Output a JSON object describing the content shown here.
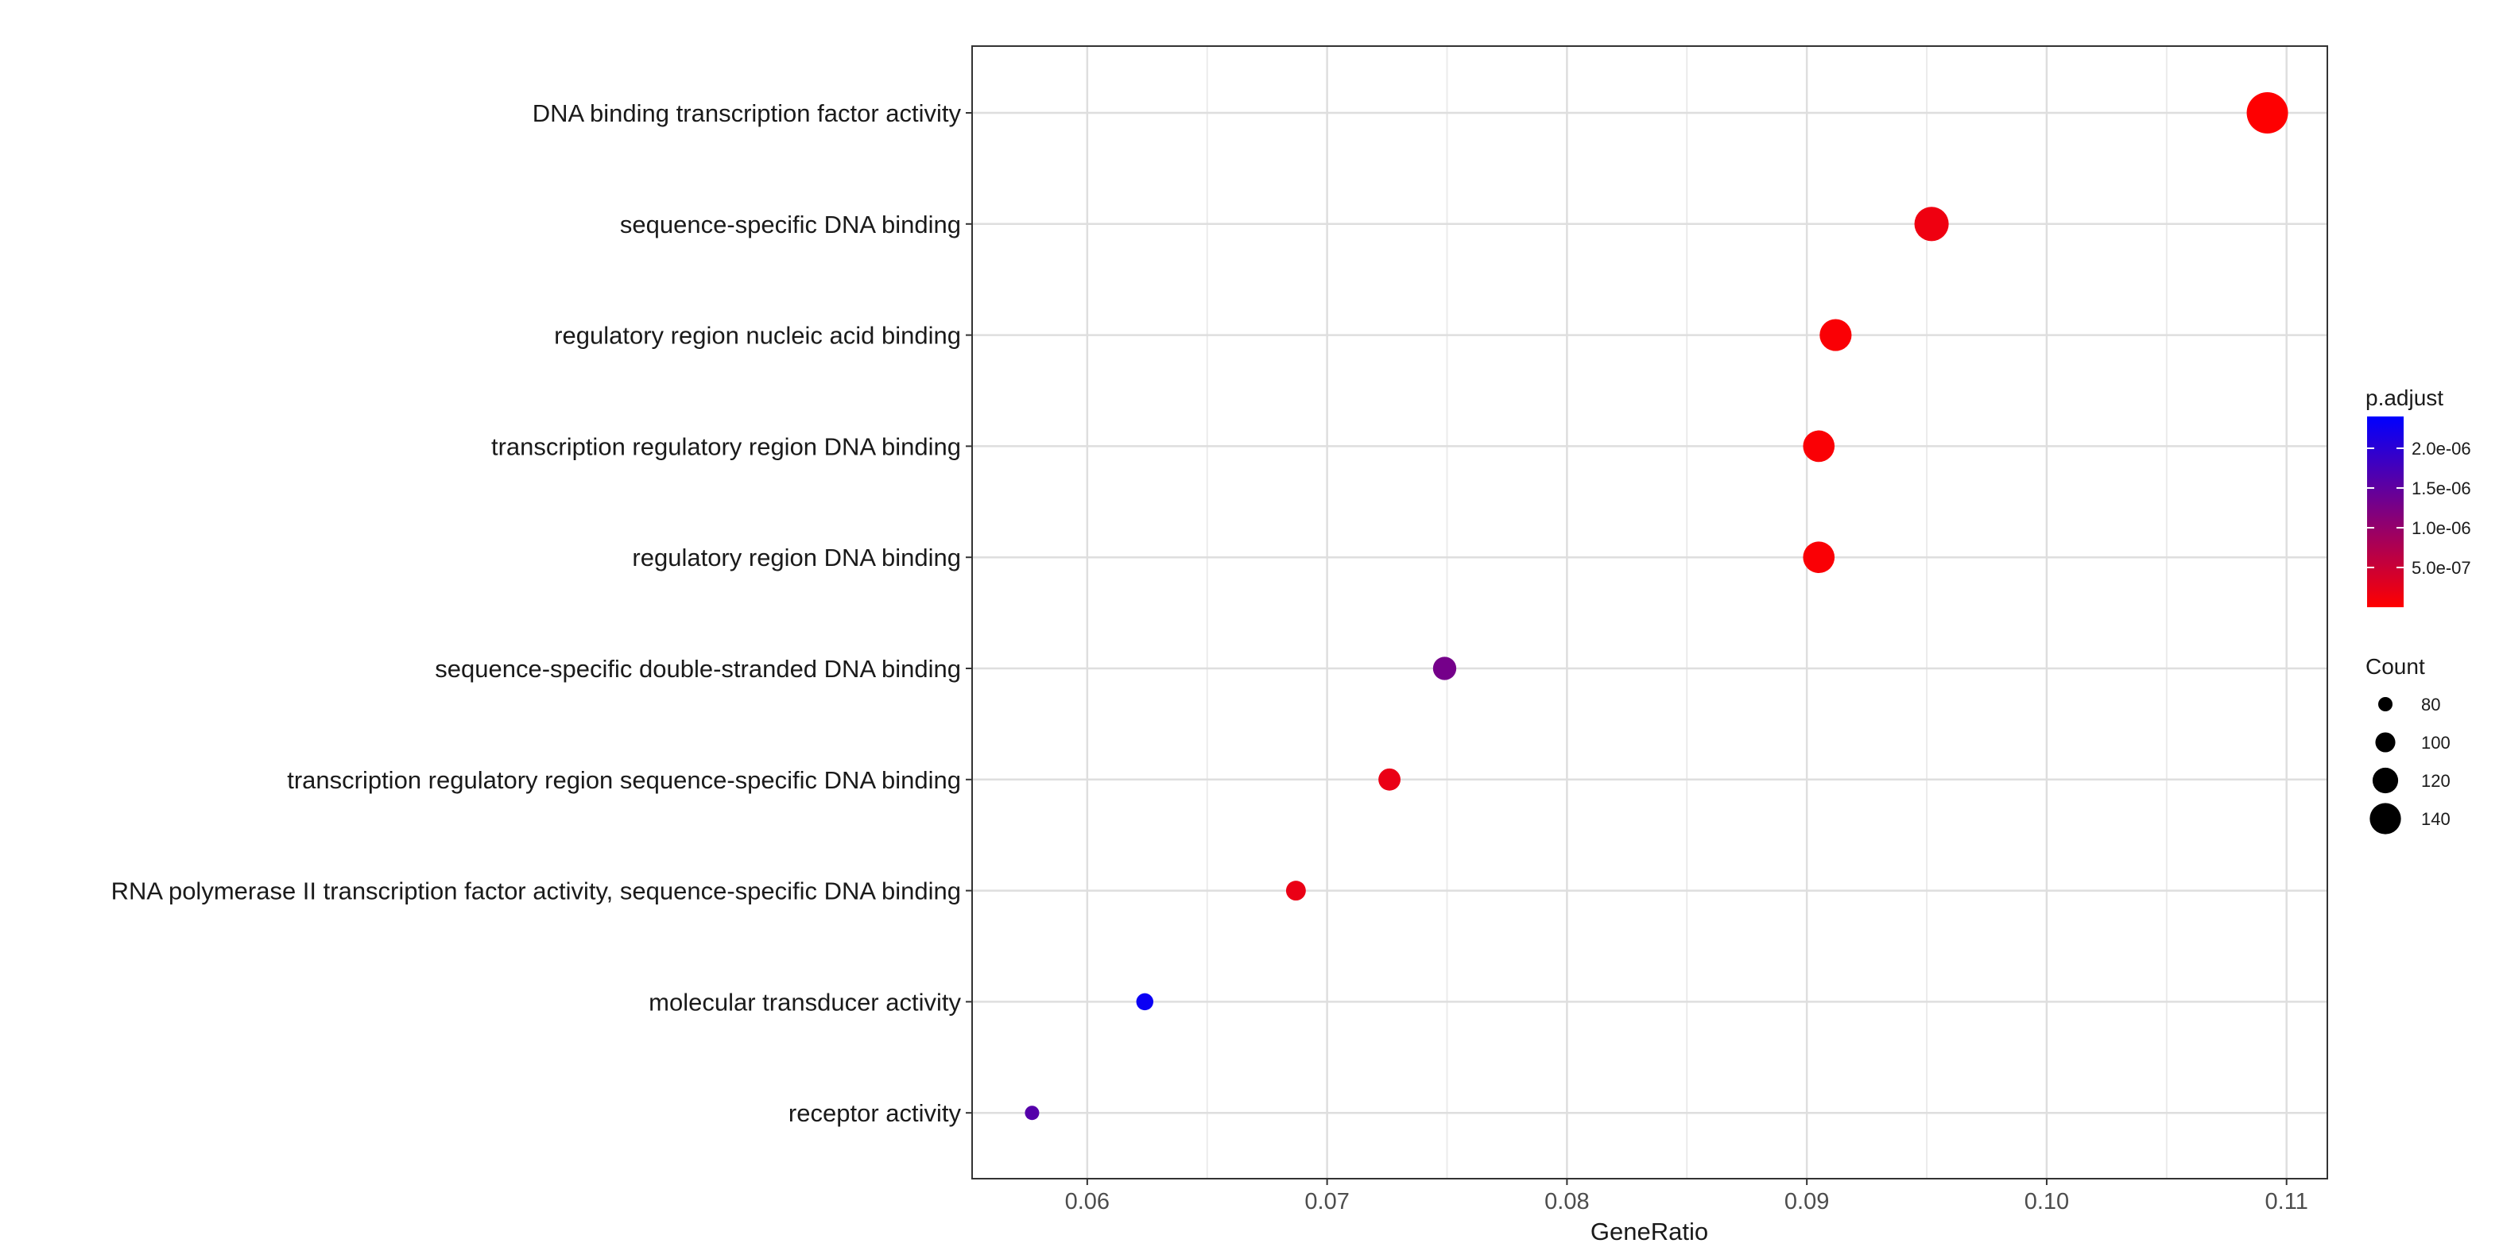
{
  "chart_data": {
    "type": "scatter",
    "title": "",
    "xlabel": "GeneRatio",
    "ylabel": "",
    "xlim": [
      0.0552,
      0.1117
    ],
    "x_ticks": [
      0.06,
      0.07,
      0.08,
      0.09,
      0.1,
      0.11
    ],
    "x_tick_labels": [
      "0.06",
      "0.07",
      "0.08",
      "0.09",
      "0.10",
      "0.11"
    ],
    "categories": [
      "DNA binding transcription factor activity",
      "sequence-specific DNA binding",
      "regulatory region nucleic acid binding",
      "transcription regulatory region DNA binding",
      "regulatory region DNA binding",
      "sequence-specific double-stranded DNA binding",
      "transcription regulatory region sequence-specific DNA binding",
      "RNA polymerase II transcription factor activity, sequence-specific DNA binding",
      "molecular transducer activity",
      "receptor activity"
    ],
    "gene_ratio": [
      0.1092,
      0.0952,
      0.0912,
      0.0905,
      0.0905,
      0.0749,
      0.0726,
      0.0687,
      0.0624,
      0.0577
    ],
    "count": [
      146,
      128,
      122,
      121,
      121,
      100,
      97,
      91,
      84,
      77
    ],
    "p_adjust": [
      1e-08,
      1.5e-07,
      5e-08,
      5e-08,
      5e-08,
      1.3e-06,
      2e-07,
      2e-07,
      2.3e-06,
      1.6e-06
    ],
    "grid": true,
    "legend_position": "right",
    "color_legend": {
      "title": "p.adjust",
      "low_color": "#ff0000",
      "high_color": "#0000ff",
      "min": 0,
      "max": 2.4e-06,
      "ticks": [
        5e-07,
        1e-06,
        1.5e-06,
        2e-06
      ],
      "tick_labels": [
        "5.0e-07",
        "1.0e-06",
        "1.5e-06",
        "2.0e-06"
      ]
    },
    "size_legend": {
      "title": "Count",
      "values": [
        80,
        100,
        120,
        140
      ],
      "labels": [
        "80",
        "100",
        "120",
        "140"
      ]
    }
  }
}
